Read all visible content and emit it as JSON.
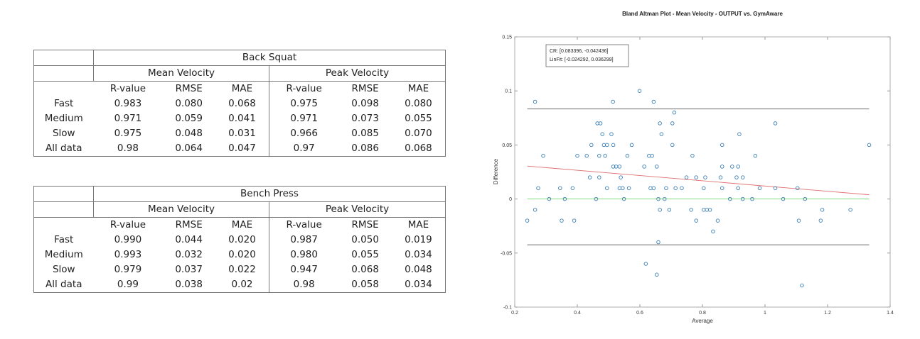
{
  "tables": [
    {
      "exercise": "Back Squat",
      "groups": [
        "Mean Velocity",
        "Peak Velocity"
      ],
      "columns": [
        "R-value",
        "RMSE",
        "MAE",
        "R-value",
        "RMSE",
        "MAE"
      ],
      "rows": [
        {
          "label": "Fast",
          "values": [
            "0.983",
            "0.080",
            "0.068",
            "0.975",
            "0.098",
            "0.080"
          ]
        },
        {
          "label": "Medium",
          "values": [
            "0.971",
            "0.059",
            "0.041",
            "0.971",
            "0.073",
            "0.055"
          ]
        },
        {
          "label": "Slow",
          "values": [
            "0.975",
            "0.048",
            "0.031",
            "0.966",
            "0.085",
            "0.070"
          ]
        },
        {
          "label": "All data",
          "values": [
            "0.98",
            "0.064",
            "0.047",
            "0.97",
            "0.086",
            "0.068"
          ]
        }
      ]
    },
    {
      "exercise": "Bench Press",
      "groups": [
        "Mean Velocity",
        "Peak Velocity"
      ],
      "columns": [
        "R-value",
        "RMSE",
        "MAE",
        "R-value",
        "RMSE",
        "MAE"
      ],
      "rows": [
        {
          "label": "Fast",
          "values": [
            "0.990",
            "0.044",
            "0.020",
            "0.987",
            "0.050",
            "0.019"
          ]
        },
        {
          "label": "Medium",
          "values": [
            "0.993",
            "0.032",
            "0.020",
            "0.980",
            "0.055",
            "0.034"
          ]
        },
        {
          "label": "Slow",
          "values": [
            "0.979",
            "0.037",
            "0.022",
            "0.947",
            "0.068",
            "0.048"
          ]
        },
        {
          "label": "All data",
          "values": [
            "0.99",
            "0.038",
            "0.02",
            "0.98",
            "0.058",
            "0.034"
          ]
        }
      ]
    }
  ],
  "chart_data": {
    "type": "scatter",
    "title": "Bland Altman Plot - Mean Velocity - OUTPUT vs. GymAware",
    "xlabel": "Average",
    "ylabel": "Difference",
    "xlim": [
      0.2,
      1.4
    ],
    "ylim": [
      -0.1,
      0.15
    ],
    "xticks": [
      "0.2",
      "0.4",
      "0.6",
      "0.8",
      "1",
      "1.2",
      "1.4"
    ],
    "yticks": [
      "-0.1",
      "-0.05",
      "0",
      "0.05",
      "0.1",
      "0.15"
    ],
    "grid": false,
    "annotation": [
      "CR: [0.083396, -0.042436]",
      "LinFit: [-0.024292, 0.036299]"
    ],
    "limits_of_agreement": [
      0.083396,
      -0.042436
    ],
    "zero_line": 0,
    "linfit": {
      "slope": -0.024292,
      "intercept": 0.036299,
      "x_range": [
        0.24,
        1.333
      ]
    },
    "colors": {
      "points": "#3a7fb5",
      "limits": "#888888",
      "zero": "#6fd66f",
      "linfit": "#e07070"
    },
    "points": [
      [
        0.599,
        0.1
      ],
      [
        0.265,
        0.09
      ],
      [
        0.514,
        0.09
      ],
      [
        0.644,
        0.09
      ],
      [
        0.71,
        0.08
      ],
      [
        0.464,
        0.07
      ],
      [
        0.474,
        0.07
      ],
      [
        0.664,
        0.07
      ],
      [
        0.704,
        0.07
      ],
      [
        1.033,
        0.07
      ],
      [
        0.48,
        0.06
      ],
      [
        0.509,
        0.06
      ],
      [
        0.669,
        0.06
      ],
      [
        0.918,
        0.06
      ],
      [
        0.445,
        0.05
      ],
      [
        0.485,
        0.05
      ],
      [
        0.495,
        0.05
      ],
      [
        0.515,
        0.05
      ],
      [
        0.574,
        0.05
      ],
      [
        0.704,
        0.05
      ],
      [
        0.863,
        0.05
      ],
      [
        1.333,
        0.05
      ],
      [
        0.291,
        0.04
      ],
      [
        0.4,
        0.04
      ],
      [
        0.43,
        0.04
      ],
      [
        0.47,
        0.04
      ],
      [
        0.489,
        0.04
      ],
      [
        0.56,
        0.04
      ],
      [
        0.629,
        0.04
      ],
      [
        0.639,
        0.04
      ],
      [
        0.768,
        0.04
      ],
      [
        0.969,
        0.04
      ],
      [
        0.515,
        0.03
      ],
      [
        0.524,
        0.03
      ],
      [
        0.535,
        0.03
      ],
      [
        0.614,
        0.03
      ],
      [
        0.654,
        0.03
      ],
      [
        0.863,
        0.03
      ],
      [
        0.895,
        0.03
      ],
      [
        0.914,
        0.03
      ],
      [
        0.44,
        0.02
      ],
      [
        0.47,
        0.02
      ],
      [
        0.539,
        0.02
      ],
      [
        0.749,
        0.02
      ],
      [
        0.78,
        0.02
      ],
      [
        0.809,
        0.02
      ],
      [
        0.858,
        0.02
      ],
      [
        0.909,
        0.02
      ],
      [
        0.929,
        0.02
      ],
      [
        0.275,
        0.01
      ],
      [
        0.345,
        0.01
      ],
      [
        0.385,
        0.01
      ],
      [
        0.495,
        0.01
      ],
      [
        0.535,
        0.01
      ],
      [
        0.545,
        0.01
      ],
      [
        0.565,
        0.01
      ],
      [
        0.634,
        0.01
      ],
      [
        0.644,
        0.01
      ],
      [
        0.684,
        0.01
      ],
      [
        0.714,
        0.01
      ],
      [
        0.734,
        0.01
      ],
      [
        0.804,
        0.01
      ],
      [
        0.863,
        0.01
      ],
      [
        0.914,
        0.01
      ],
      [
        0.983,
        0.01
      ],
      [
        1.033,
        0.01
      ],
      [
        1.104,
        0.01
      ],
      [
        0.31,
        0
      ],
      [
        0.36,
        0
      ],
      [
        0.46,
        0
      ],
      [
        0.549,
        0
      ],
      [
        0.659,
        0
      ],
      [
        0.679,
        0
      ],
      [
        0.888,
        0
      ],
      [
        0.929,
        0
      ],
      [
        0.959,
        0
      ],
      [
        1.058,
        0
      ],
      [
        1.128,
        0
      ],
      [
        0.265,
        -0.01
      ],
      [
        0.664,
        -0.01
      ],
      [
        0.694,
        -0.01
      ],
      [
        0.764,
        -0.01
      ],
      [
        0.804,
        -0.01
      ],
      [
        0.814,
        -0.01
      ],
      [
        0.824,
        -0.01
      ],
      [
        1.183,
        -0.01
      ],
      [
        1.273,
        -0.01
      ],
      [
        0.24,
        -0.02
      ],
      [
        0.35,
        -0.02
      ],
      [
        0.39,
        -0.02
      ],
      [
        0.78,
        -0.02
      ],
      [
        0.849,
        -0.02
      ],
      [
        1.108,
        -0.02
      ],
      [
        1.178,
        -0.02
      ],
      [
        0.834,
        -0.03
      ],
      [
        0.659,
        -0.04
      ],
      [
        0.619,
        -0.06
      ],
      [
        0.654,
        -0.07
      ],
      [
        1.118,
        -0.08
      ]
    ]
  }
}
